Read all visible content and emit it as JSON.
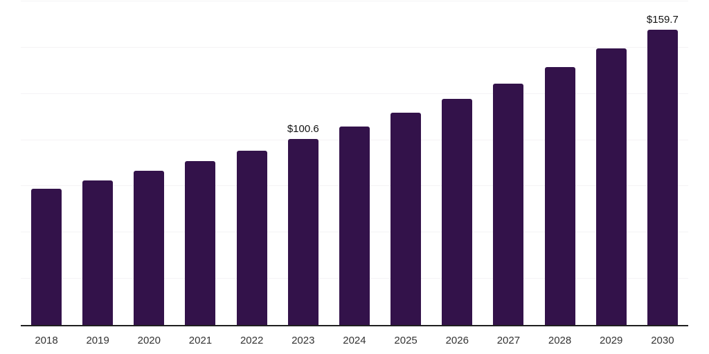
{
  "chart_data": {
    "type": "bar",
    "title": "",
    "xlabel": "",
    "ylabel": "",
    "categories": [
      "2018",
      "2019",
      "2020",
      "2021",
      "2022",
      "2023",
      "2024",
      "2025",
      "2026",
      "2027",
      "2028",
      "2029",
      "2030"
    ],
    "values": [
      73.5,
      78.3,
      83.3,
      88.5,
      94.1,
      100.6,
      107.2,
      114.7,
      122.2,
      130.4,
      139.4,
      149.4,
      159.7
    ],
    "value_prefix": "$",
    "labeled_points": [
      {
        "index": 5,
        "label": "$100.6"
      },
      {
        "index": 12,
        "label": "$159.7"
      }
    ],
    "ylim": [
      0,
      175
    ],
    "gridline_step": 25,
    "grid": "horizontal",
    "y_tick_labels_visible": false,
    "legend_position": "none"
  },
  "colors": {
    "background": "#ffffff",
    "bar": "#33124A",
    "gridline": "#f4f3f5",
    "axis_line": "#1f1f1f",
    "tick_label": "#333333",
    "data_label": "#111111"
  }
}
